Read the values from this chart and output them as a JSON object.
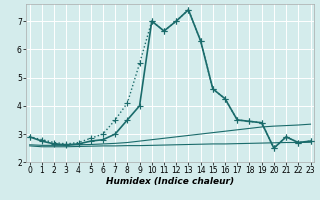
{
  "xlabel": "Humidex (Indice chaleur)",
  "background_color": "#d4ecec",
  "grid_color": "#ffffff",
  "line_color": "#1a6b6b",
  "x_values": [
    0,
    1,
    2,
    3,
    4,
    5,
    6,
    7,
    8,
    9,
    10,
    11,
    12,
    13,
    14,
    15,
    16,
    17,
    18,
    19,
    20,
    21,
    22,
    23
  ],
  "series": [
    {
      "y": [
        2.9,
        2.8,
        2.7,
        2.65,
        2.7,
        2.85,
        3.0,
        3.5,
        4.1,
        5.5,
        7.0,
        6.65,
        7.0,
        7.4,
        6.3,
        4.6,
        4.25,
        3.5,
        3.45,
        3.4,
        2.5,
        2.9,
        2.7,
        2.75
      ],
      "style": "dotted",
      "marker": "+",
      "lw": 1.0,
      "ms": 4
    },
    {
      "y": [
        2.9,
        2.75,
        2.65,
        2.62,
        2.65,
        2.75,
        2.8,
        3.0,
        3.5,
        4.0,
        7.0,
        6.65,
        7.0,
        7.4,
        6.3,
        4.6,
        4.25,
        3.5,
        3.45,
        3.4,
        2.5,
        2.9,
        2.7,
        2.75
      ],
      "style": "solid",
      "marker": "+",
      "lw": 1.2,
      "ms": 4
    },
    {
      "y": [
        2.62,
        2.6,
        2.6,
        2.6,
        2.62,
        2.63,
        2.65,
        2.67,
        2.7,
        2.75,
        2.8,
        2.85,
        2.9,
        2.95,
        3.0,
        3.05,
        3.1,
        3.15,
        3.2,
        3.25,
        3.28,
        3.3,
        3.32,
        3.35
      ],
      "style": "solid",
      "marker": null,
      "lw": 0.8,
      "ms": null
    },
    {
      "y": [
        2.58,
        2.55,
        2.55,
        2.55,
        2.56,
        2.57,
        2.58,
        2.58,
        2.59,
        2.59,
        2.6,
        2.61,
        2.62,
        2.63,
        2.64,
        2.65,
        2.65,
        2.66,
        2.67,
        2.68,
        2.69,
        2.7,
        2.7,
        2.71
      ],
      "style": "solid",
      "marker": null,
      "lw": 0.8,
      "ms": null
    }
  ],
  "ylim": [
    2.0,
    7.6
  ],
  "xlim": [
    -0.3,
    23.3
  ],
  "yticks": [
    2,
    3,
    4,
    5,
    6,
    7
  ],
  "xticks": [
    0,
    1,
    2,
    3,
    4,
    5,
    6,
    7,
    8,
    9,
    10,
    11,
    12,
    13,
    14,
    15,
    16,
    17,
    18,
    19,
    20,
    21,
    22,
    23
  ],
  "tick_fontsize": 5.5,
  "xlabel_fontsize": 6.5
}
